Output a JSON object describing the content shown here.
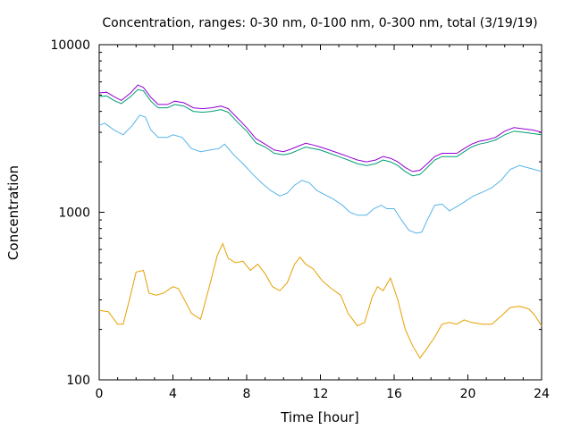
{
  "chart_data": {
    "type": "line",
    "title": "Concentration, ranges: 0-30 nm, 0-100 nm, 0-300 nm, total (3/19/19)",
    "xlabel": "Time [hour]",
    "ylabel": "Concentration",
    "xlim": [
      0,
      24
    ],
    "ylim": [
      100,
      10000
    ],
    "yscale": "log",
    "grid": false,
    "legend": "none",
    "x_ticks": [
      0,
      4,
      8,
      12,
      16,
      20,
      24
    ],
    "x_tick_labels": [
      "0",
      "4",
      "8",
      "12",
      "16",
      "20",
      "24"
    ],
    "y_ticks": [
      100,
      1000,
      10000
    ],
    "y_tick_labels": [
      "100",
      "1000",
      "10000"
    ],
    "series": [
      {
        "color": "#e69f00",
        "x": [
          0,
          0.5,
          1,
          1.3,
          1.7,
          2,
          2.4,
          2.7,
          3.1,
          3.5,
          4,
          4.3,
          4.7,
          5,
          5.5,
          6,
          6.4,
          6.7,
          7,
          7.4,
          7.8,
          8.2,
          8.6,
          9,
          9.4,
          9.8,
          10.2,
          10.6,
          10.9,
          11.2,
          11.6,
          12.1,
          12.6,
          13.1,
          13.5,
          14,
          14.4,
          14.8,
          15.1,
          15.4,
          15.8,
          16.2,
          16.6,
          17,
          17.4,
          17.8,
          18.2,
          18.6,
          19,
          19.4,
          19.8,
          20.2,
          20.8,
          21.3,
          21.8,
          22.3,
          22.8,
          23.3,
          23.6,
          24
        ],
        "y": [
          260,
          255,
          215,
          215,
          320,
          440,
          450,
          330,
          320,
          330,
          360,
          350,
          290,
          250,
          230,
          370,
          550,
          650,
          530,
          500,
          510,
          450,
          490,
          430,
          360,
          340,
          380,
          490,
          540,
          490,
          460,
          390,
          350,
          320,
          250,
          210,
          220,
          310,
          360,
          340,
          405,
          300,
          200,
          160,
          135,
          155,
          180,
          215,
          220,
          215,
          228,
          220,
          215,
          215,
          240,
          270,
          275,
          265,
          245,
          210
        ]
      },
      {
        "color": "#56b4e9",
        "x": [
          0,
          0.3,
          0.8,
          1.3,
          1.8,
          2.2,
          2.5,
          2.8,
          3.2,
          3.7,
          4,
          4.5,
          5,
          5.5,
          6,
          6.5,
          6.8,
          7.3,
          7.8,
          8.3,
          8.8,
          9.3,
          9.8,
          10.2,
          10.6,
          11,
          11.4,
          11.8,
          12.2,
          12.7,
          13.2,
          13.6,
          14,
          14.5,
          14.9,
          15.3,
          15.6,
          16,
          16.4,
          16.8,
          17.2,
          17.5,
          17.8,
          18.2,
          18.6,
          19,
          19.4,
          19.8,
          20.3,
          20.8,
          21.3,
          21.8,
          22.3,
          22.8,
          23.2,
          23.6,
          24
        ],
        "y": [
          3300,
          3400,
          3100,
          2900,
          3300,
          3800,
          3700,
          3100,
          2800,
          2800,
          2900,
          2800,
          2400,
          2300,
          2350,
          2400,
          2550,
          2200,
          1950,
          1700,
          1500,
          1350,
          1250,
          1300,
          1450,
          1550,
          1500,
          1350,
          1280,
          1200,
          1100,
          1000,
          960,
          960,
          1050,
          1100,
          1050,
          1050,
          900,
          780,
          750,
          760,
          900,
          1100,
          1120,
          1020,
          1080,
          1150,
          1250,
          1320,
          1400,
          1550,
          1800,
          1900,
          1850,
          1800,
          1750
        ]
      },
      {
        "color": "#009e73",
        "x": [
          0,
          0.4,
          0.8,
          1.2,
          1.7,
          2.1,
          2.4,
          2.8,
          3.2,
          3.7,
          4.1,
          4.6,
          5.1,
          5.6,
          6.1,
          6.6,
          7,
          7.5,
          8,
          8.5,
          9,
          9.5,
          10,
          10.4,
          10.8,
          11.2,
          11.6,
          12,
          12.5,
          13,
          13.5,
          14,
          14.5,
          15,
          15.4,
          15.8,
          16.2,
          16.6,
          17,
          17.4,
          17.8,
          18.2,
          18.6,
          19,
          19.4,
          19.8,
          20.2,
          20.6,
          21,
          21.5,
          22,
          22.5,
          23,
          23.5,
          24
        ],
        "y": [
          4900,
          4950,
          4650,
          4450,
          4900,
          5400,
          5300,
          4600,
          4200,
          4200,
          4400,
          4300,
          4000,
          3950,
          4000,
          4100,
          3950,
          3450,
          3050,
          2600,
          2450,
          2250,
          2200,
          2250,
          2350,
          2450,
          2400,
          2350,
          2250,
          2150,
          2050,
          1950,
          1900,
          1950,
          2050,
          2000,
          1900,
          1750,
          1650,
          1680,
          1850,
          2050,
          2150,
          2150,
          2150,
          2300,
          2450,
          2550,
          2600,
          2700,
          2900,
          3050,
          3000,
          2950,
          2900
        ]
      },
      {
        "color": "#9400d3",
        "x": [
          0,
          0.4,
          0.8,
          1.2,
          1.7,
          2.1,
          2.4,
          2.8,
          3.2,
          3.7,
          4.1,
          4.6,
          5.1,
          5.6,
          6.1,
          6.6,
          7,
          7.5,
          8,
          8.5,
          9,
          9.5,
          10,
          10.4,
          10.8,
          11.2,
          11.6,
          12,
          12.5,
          13,
          13.5,
          14,
          14.5,
          15,
          15.4,
          15.8,
          16.2,
          16.6,
          17,
          17.4,
          17.8,
          18.2,
          18.6,
          19,
          19.4,
          19.8,
          20.2,
          20.6,
          21,
          21.5,
          22,
          22.5,
          23,
          23.5,
          24
        ],
        "y": [
          5150,
          5200,
          4900,
          4650,
          5150,
          5750,
          5550,
          4850,
          4400,
          4400,
          4600,
          4500,
          4200,
          4150,
          4200,
          4300,
          4150,
          3650,
          3200,
          2750,
          2550,
          2350,
          2300,
          2380,
          2480,
          2580,
          2520,
          2450,
          2350,
          2250,
          2150,
          2050,
          2000,
          2050,
          2150,
          2100,
          2000,
          1850,
          1750,
          1780,
          1950,
          2150,
          2250,
          2250,
          2250,
          2400,
          2550,
          2650,
          2700,
          2800,
          3050,
          3200,
          3150,
          3100,
          3000
        ]
      }
    ]
  }
}
